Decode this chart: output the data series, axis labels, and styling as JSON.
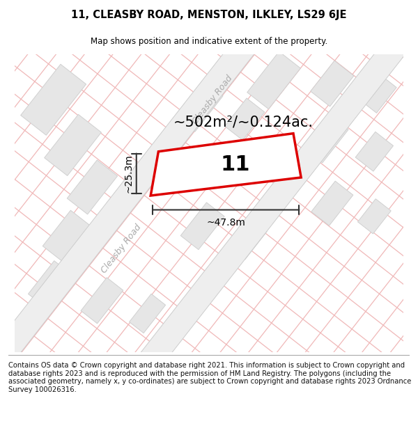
{
  "title_line1": "11, CLEASBY ROAD, MENSTON, ILKLEY, LS29 6JE",
  "title_line2": "Map shows position and indicative extent of the property.",
  "footer_text": "Contains OS data © Crown copyright and database right 2021. This information is subject to Crown copyright and database rights 2023 and is reproduced with the permission of HM Land Registry. The polygons (including the associated geometry, namely x, y co-ordinates) are subject to Crown copyright and database rights 2023 Ordnance Survey 100026316.",
  "area_label": "~502m²/~0.124ac.",
  "width_label": "~47.8m",
  "height_label": "~25.3m",
  "property_number": "11",
  "bg_color": "#ffffff",
  "block_fc": "#e8e8e8",
  "block_ec": "#cccccc",
  "road_outline_color": "#f0b8b8",
  "road_fill_color": "#e8e8e8",
  "property_outline": "#dd0000",
  "road_label_color": "#aaaaaa",
  "dim_color": "#333333",
  "title_fontsize": 10.5,
  "subtitle_fontsize": 8.5,
  "footer_fontsize": 7.2,
  "area_fontsize": 15,
  "property_label_fontsize": 22,
  "dim_fontsize": 10,
  "road_label_fontsize": 9
}
